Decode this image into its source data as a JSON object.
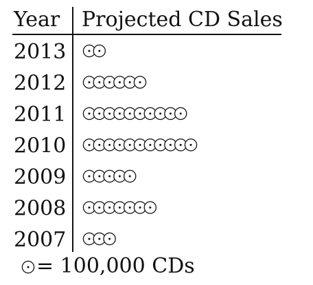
{
  "chart_data": {
    "type": "pictograph",
    "title": "",
    "columns": {
      "category": "Year",
      "value": "Projected CD Sales"
    },
    "categories": [
      "2013",
      "2012",
      "2011",
      "2010",
      "2009",
      "2008",
      "2007"
    ],
    "values": [
      200000,
      600000,
      1000000,
      1100000,
      500000,
      700000,
      300000
    ],
    "symbol_value": 100000,
    "legend": {
      "symbol": "circle-with-center-dot",
      "text": "= 100,000 CDs",
      "placement": "bottom-left"
    }
  },
  "colors": {
    "ink": "#111111",
    "background": "#ffffff"
  }
}
